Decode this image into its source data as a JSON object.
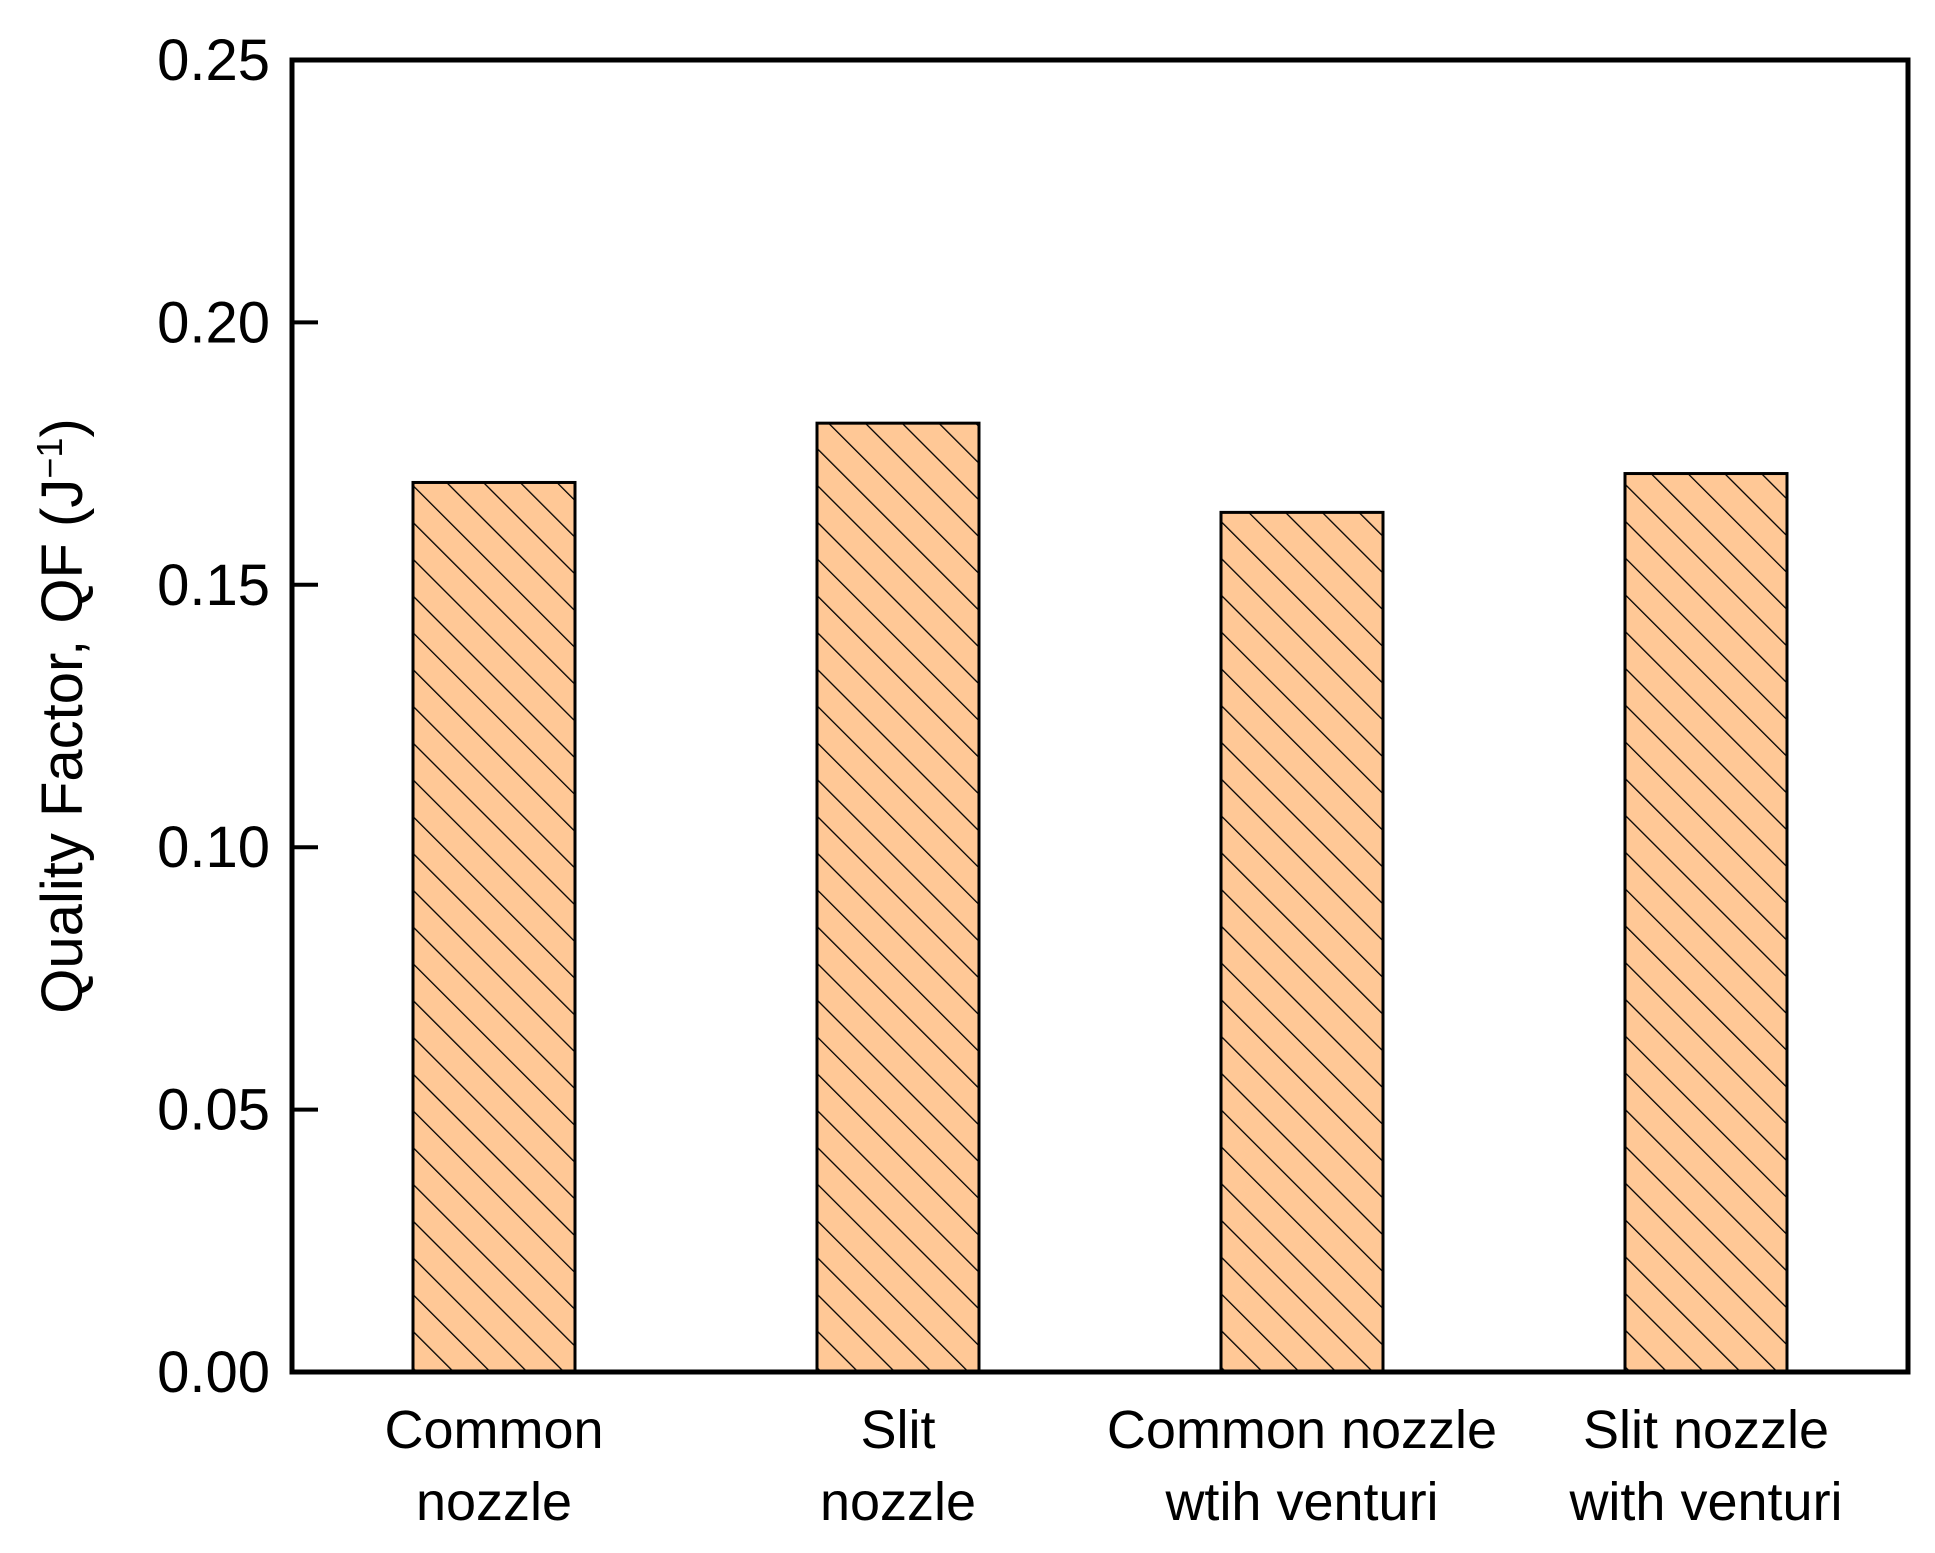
{
  "chart_data": {
    "type": "bar",
    "categories": [
      [
        "Common",
        "nozzle"
      ],
      [
        "Slit",
        "nozzle"
      ],
      [
        "Common nozzle",
        "wtih venturi"
      ],
      [
        "Slit nozzle",
        "with venturi"
      ]
    ],
    "values": [
      0.1695,
      0.1808,
      0.1638,
      0.1712
    ],
    "ylabel": "Quality Factor, QF (J",
    "ylabel_sup": "−1",
    "ylabel_close": ")",
    "ylim": [
      0,
      0.25
    ],
    "yticks": [
      "0.00",
      "0.05",
      "0.10",
      "0.15",
      "0.20",
      "0.25"
    ],
    "bar_color": "#ffc896",
    "hatch": "diagonal-backslash",
    "grid": false
  }
}
